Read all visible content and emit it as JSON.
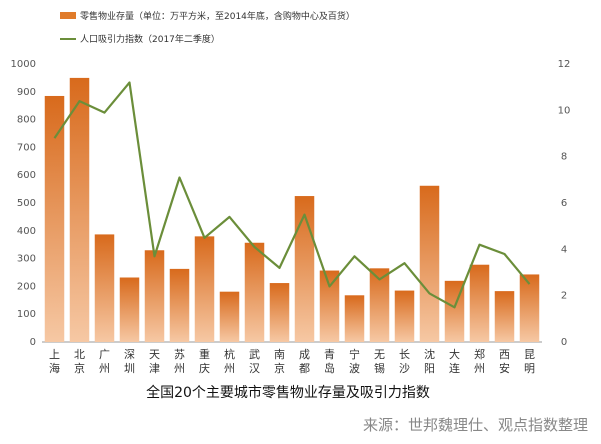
{
  "chart_data": {
    "type": "bar",
    "title": "全国20个主要城市零售物业存量及吸引力指数",
    "source": "来源：世邦魏理仕、观点指数整理",
    "categories": [
      [
        "上",
        "海"
      ],
      [
        "北",
        "京"
      ],
      [
        "广",
        "州"
      ],
      [
        "深",
        "圳"
      ],
      [
        "天",
        "津"
      ],
      [
        "苏",
        "州"
      ],
      [
        "重",
        "庆"
      ],
      [
        "杭",
        "州"
      ],
      [
        "武",
        "汉"
      ],
      [
        "南",
        "京"
      ],
      [
        "成",
        "都"
      ],
      [
        "青",
        "岛"
      ],
      [
        "宁",
        "波"
      ],
      [
        "无",
        "锡"
      ],
      [
        "长",
        "沙"
      ],
      [
        "沈",
        "阳"
      ],
      [
        "大",
        "连"
      ],
      [
        "郑",
        "州"
      ],
      [
        "西",
        "安"
      ],
      [
        "昆",
        "明"
      ]
    ],
    "series": [
      {
        "name": "零售物业存量（单位：万平方米，至2014年底，含购物中心及百货）",
        "type": "bar",
        "axis": "left",
        "color": "#e07b2a",
        "values": [
          885,
          950,
          387,
          232,
          330,
          263,
          380,
          181,
          357,
          212,
          525,
          257,
          168,
          265,
          185,
          562,
          220,
          278,
          183,
          243
        ]
      },
      {
        "name": "人口吸引力指数（2017年二季度）",
        "type": "line",
        "axis": "right",
        "color": "#6b8e3a",
        "values": [
          8.8,
          10.4,
          9.9,
          11.2,
          3.7,
          7.1,
          4.5,
          5.4,
          4.1,
          3.2,
          5.5,
          2.4,
          3.7,
          2.7,
          3.4,
          2.1,
          1.5,
          4.2,
          3.8,
          2.5
        ]
      }
    ],
    "y_left": {
      "min": 0,
      "max": 1000,
      "step": 100
    },
    "y_right": {
      "min": 0,
      "max": 12,
      "ticks": [
        0,
        2,
        4,
        6,
        8,
        10,
        12
      ]
    },
    "grid": false,
    "legend_position": "top-left"
  }
}
